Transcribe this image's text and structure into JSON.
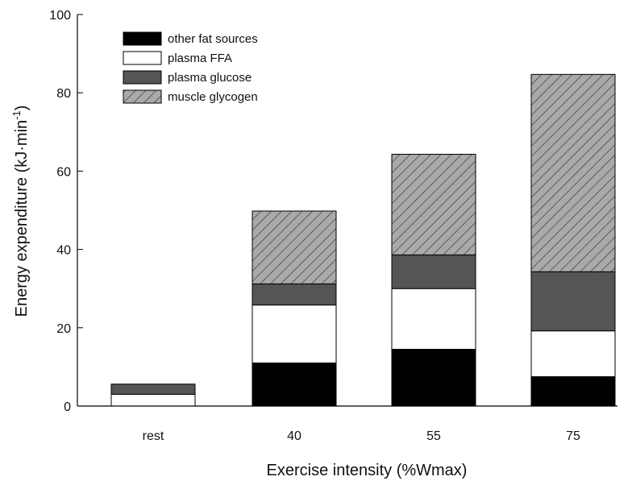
{
  "chart_data": {
    "type": "bar",
    "stacked": true,
    "xlabel": "Exercise intensity (%Wmax)",
    "ylabel_main": "Energy expenditure (kJ·min",
    "ylabel_sup": "-1",
    "ylabel_close": ")",
    "ylim": [
      0,
      100
    ],
    "yticks": [
      "0",
      "20",
      "40",
      "60",
      "80",
      "100"
    ],
    "categories": [
      "rest",
      "40",
      "55",
      "75"
    ],
    "series": [
      {
        "name": "other fat sources",
        "color": "#000000",
        "pattern": "solid",
        "values": [
          0,
          11,
          14.5,
          7.5
        ]
      },
      {
        "name": "plasma FFA",
        "color": "#ffffff",
        "pattern": "solid",
        "values": [
          3,
          14.8,
          15.5,
          11.7
        ]
      },
      {
        "name": "plasma glucose",
        "color": "#555555",
        "pattern": "solid",
        "values": [
          2.6,
          5.4,
          8.6,
          15.1
        ]
      },
      {
        "name": "muscle glycogen",
        "color": "#a9a9a9",
        "pattern": "hatch",
        "values": [
          0,
          18.6,
          25.7,
          50.4
        ]
      }
    ],
    "legend_position": "top-left",
    "grid": false
  }
}
